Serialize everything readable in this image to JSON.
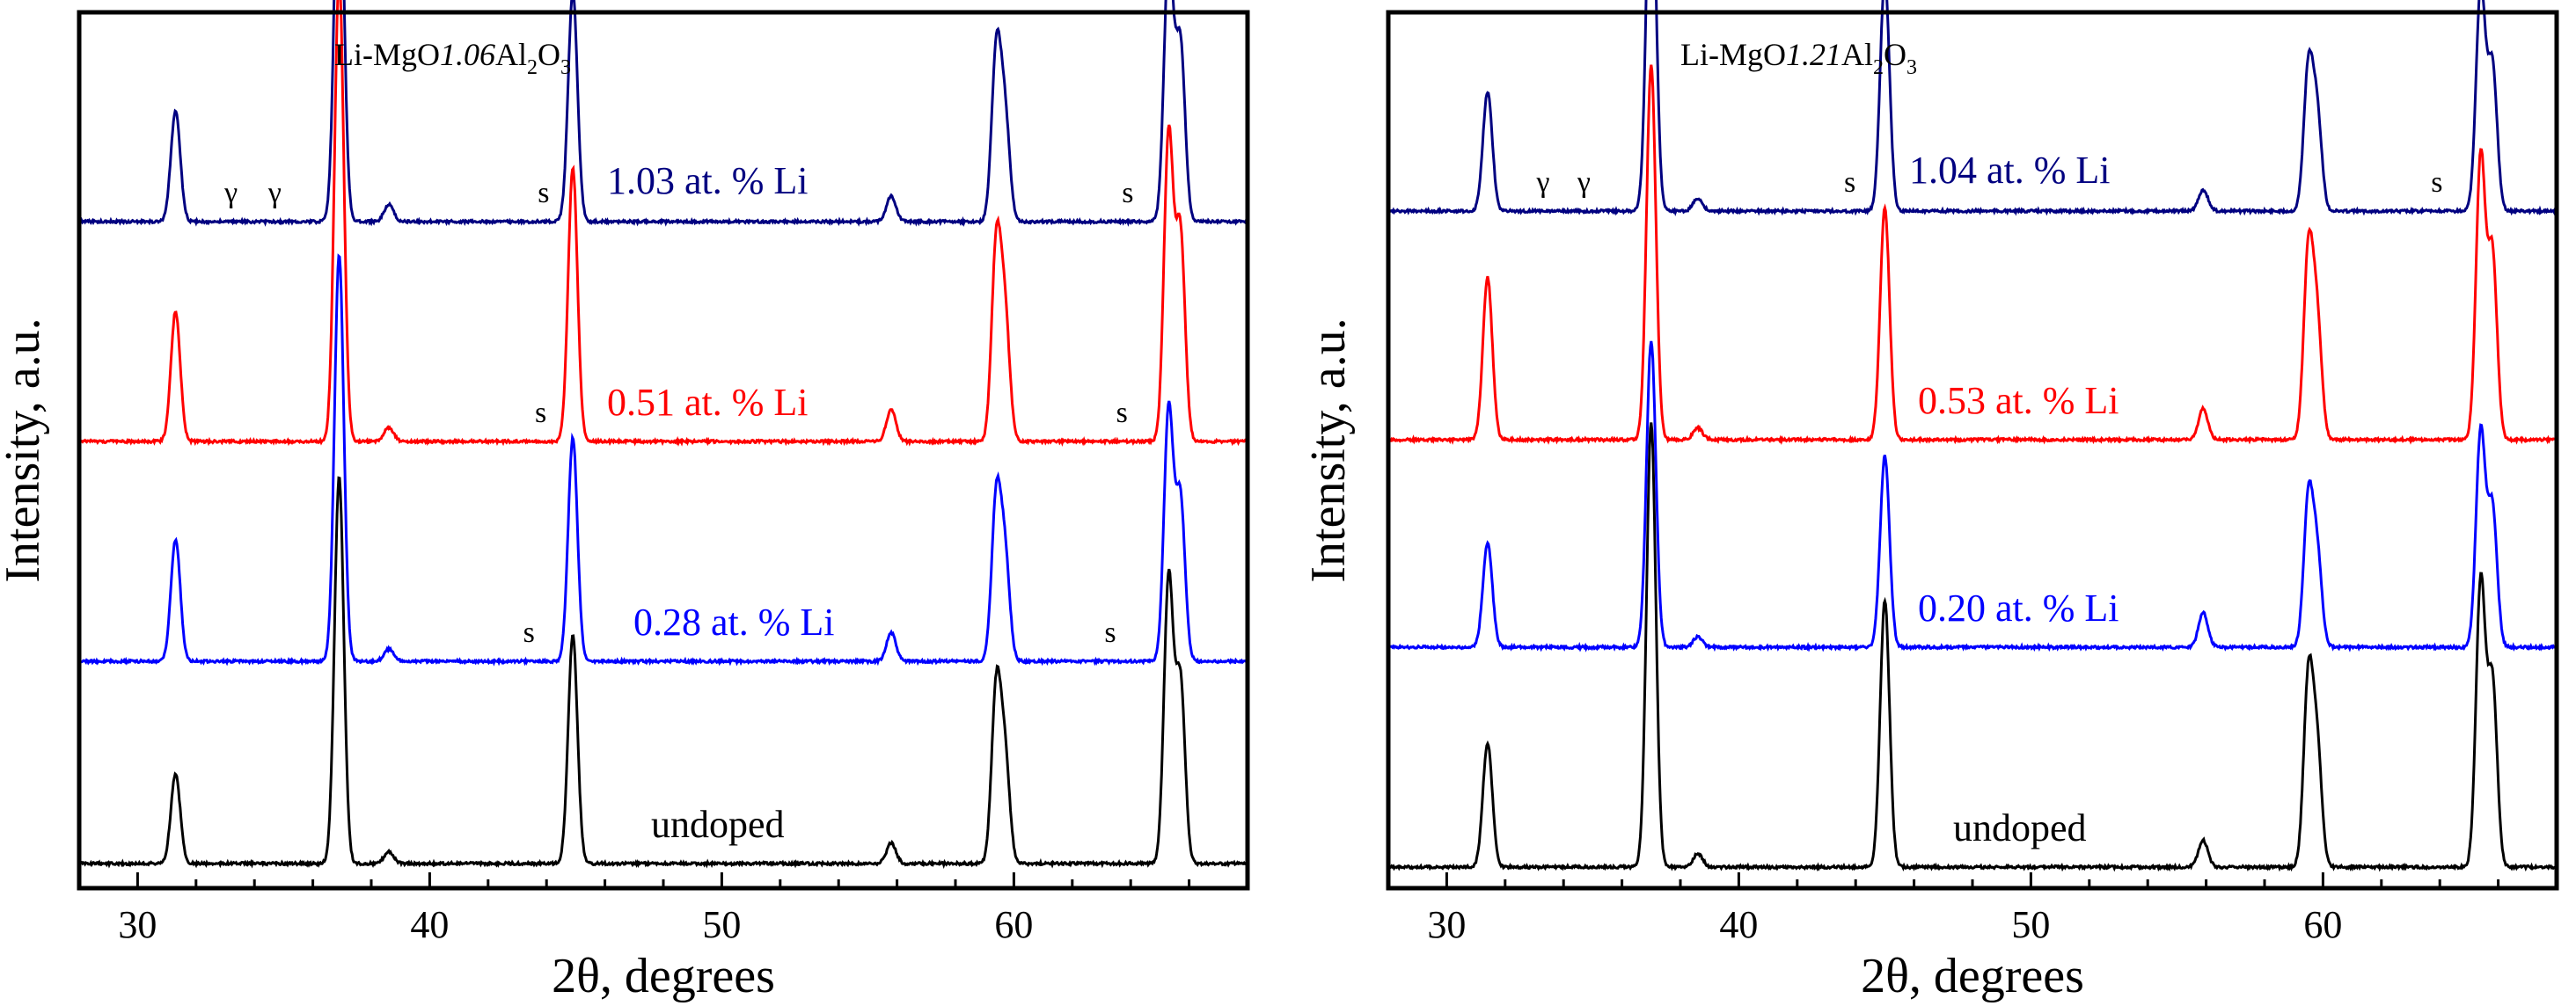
{
  "chart_data": [
    {
      "type": "line",
      "title": "Li-MgO1.06Al2O3",
      "title_parts": {
        "prefix": "Li-MgO",
        "ratio": "1.06",
        "al": "Al",
        "al_sub": "2",
        "o": "O",
        "o_sub": "3"
      },
      "xlabel": "2θ, degrees",
      "ylabel": "Intensity, a.u.",
      "xlim": [
        28,
        68
      ],
      "xticks": [
        30,
        40,
        50,
        60
      ],
      "peaks": [
        31.3,
        36.9,
        38.6,
        44.9,
        55.8,
        59.4,
        59.7,
        65.3,
        65.7
      ],
      "series": [
        {
          "name": "undoped",
          "color": "#000000",
          "heights": [
            0.22,
            0.95,
            0.03,
            0.56,
            0.05,
            0.43,
            0.25,
            0.7,
            0.45
          ]
        },
        {
          "name": "0.28 at. % Li",
          "color": "#0000ff",
          "heights": [
            0.3,
            1.0,
            0.03,
            0.55,
            0.07,
            0.4,
            0.25,
            0.62,
            0.4
          ]
        },
        {
          "name": "0.51 at. % Li",
          "color": "#ff0000",
          "heights": [
            0.28,
            1.0,
            0.03,
            0.59,
            0.07,
            0.42,
            0.26,
            0.66,
            0.45
          ]
        },
        {
          "name": "1.03 at. % Li",
          "color": "#000080",
          "heights": [
            0.26,
            0.94,
            0.04,
            0.54,
            0.06,
            0.4,
            0.24,
            0.62,
            0.42
          ]
        }
      ],
      "annotations": [
        {
          "text": "γ",
          "x": 33.2,
          "series": 3
        },
        {
          "text": "γ",
          "x": 34.7,
          "series": 3
        },
        {
          "text": "s",
          "x": 43.9,
          "series": 3
        },
        {
          "text": "s",
          "x": 63.9,
          "series": 3
        },
        {
          "text": "s",
          "x": 43.8,
          "series": 2
        },
        {
          "text": "s",
          "x": 63.7,
          "series": 2
        },
        {
          "text": "s",
          "x": 43.4,
          "series": 1
        },
        {
          "text": "s",
          "x": 63.3,
          "series": 1
        }
      ]
    },
    {
      "type": "line",
      "title": "Li-MgO1.21Al2O3",
      "title_parts": {
        "prefix": "Li-MgO",
        "ratio": "1.21",
        "al": "Al",
        "al_sub": "2",
        "o": "O",
        "o_sub": "3"
      },
      "xlabel": "2θ, degrees",
      "ylabel": "Intensity, a.u.",
      "xlim": [
        28,
        68
      ],
      "xticks": [
        30,
        40,
        50,
        60
      ],
      "peaks": [
        31.4,
        37.0,
        38.6,
        45.0,
        55.9,
        59.5,
        59.8,
        65.4,
        65.8
      ],
      "series": [
        {
          "name": "undoped",
          "color": "#000000",
          "heights": [
            0.28,
            1.0,
            0.03,
            0.6,
            0.06,
            0.42,
            0.26,
            0.64,
            0.42
          ]
        },
        {
          "name": "0.20 at. % Li",
          "color": "#0000ff",
          "heights": [
            0.3,
            0.88,
            0.03,
            0.55,
            0.1,
            0.42,
            0.26,
            0.62,
            0.4
          ]
        },
        {
          "name": "0.53 at. % Li",
          "color": "#ff0000",
          "heights": [
            0.42,
            0.97,
            0.03,
            0.6,
            0.08,
            0.48,
            0.3,
            0.73,
            0.48
          ]
        },
        {
          "name": "1.04 at. % Li",
          "color": "#000080",
          "heights": [
            0.28,
            0.9,
            0.03,
            0.55,
            0.05,
            0.33,
            0.22,
            0.52,
            0.34
          ]
        }
      ],
      "annotations": [
        {
          "text": "γ",
          "x": 33.3,
          "series": 3
        },
        {
          "text": "γ",
          "x": 34.7,
          "series": 3
        },
        {
          "text": "s",
          "x": 43.8,
          "series": 3
        },
        {
          "text": "s",
          "x": 63.9,
          "series": 3
        }
      ]
    }
  ]
}
